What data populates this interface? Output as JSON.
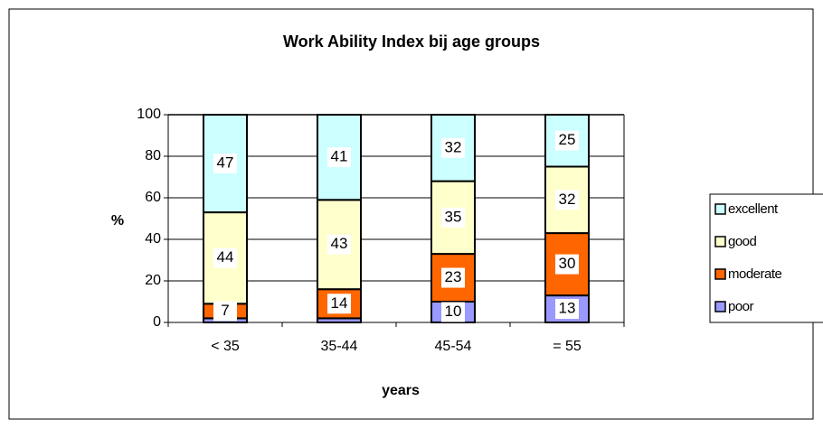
{
  "chart_data": {
    "type": "stacked-bar",
    "title": "Work Ability Index bij age groups",
    "x_label": "years",
    "y_label": "%",
    "categories": [
      "< 35",
      "35-44",
      "45-54",
      "= 55"
    ],
    "series": [
      {
        "name": "poor",
        "color": "#9999ff",
        "values": [
          2,
          2,
          10,
          13
        ]
      },
      {
        "name": "moderate",
        "color": "#ff6600",
        "values": [
          7,
          14,
          23,
          30
        ]
      },
      {
        "name": "good",
        "color": "#ffffcc",
        "values": [
          44,
          43,
          35,
          32
        ]
      },
      {
        "name": "excellent",
        "color": "#ccffff",
        "values": [
          47,
          41,
          32,
          25
        ]
      }
    ],
    "ylim": [
      0,
      100
    ],
    "yticks": [
      0,
      20,
      40,
      60,
      80,
      100
    ],
    "grid": true,
    "legend": "right"
  }
}
